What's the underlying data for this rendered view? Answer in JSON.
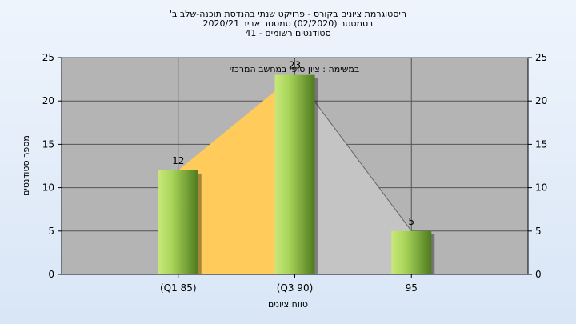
{
  "chart_data": {
    "type": "bar",
    "title_lines": [
      "היסטוגרמת ציונים בקורס - פרויקט שנתי בהנדסת תוכנה-שלב ב'",
      "בסמסטר  (02/2020)  סמסטר אביב 2020/21",
      "סטודנטים רשומים - 41"
    ],
    "annotation": "במשימה : ציון סופי במחשב המרכזי",
    "xlabel": "טווח ציונים",
    "ylabel": "מספר סטודנטים",
    "categories": [
      "(Q1 85)",
      "(Q3 90)",
      "95"
    ],
    "values": [
      12,
      23,
      5
    ],
    "ylim": [
      0,
      25
    ],
    "yticks": [
      0,
      5,
      10,
      15,
      20,
      25
    ],
    "grid": true,
    "colors": {
      "plot_bg": "#b4b4b4",
      "bar_light": "#c8e87a",
      "bar_dark": "#4e7a1e",
      "area_fill": "#ffcc5c",
      "area_gray": "#c4c4c4"
    }
  }
}
